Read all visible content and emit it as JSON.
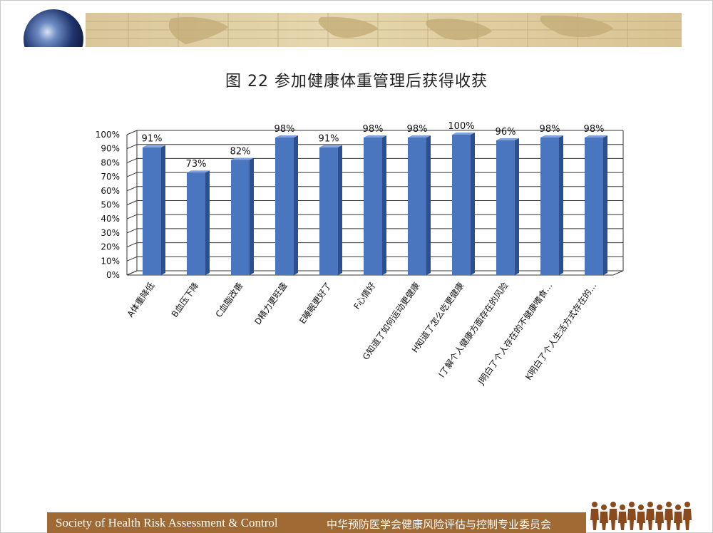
{
  "page": {
    "title": "图 22  参加健康体重管理后获得收获"
  },
  "chart_data": {
    "type": "bar",
    "title": "图 22  参加健康体重管理后获得收获",
    "xlabel": "",
    "ylabel": "",
    "ylim": [
      0,
      100
    ],
    "yticks": [
      "0%",
      "10%",
      "20%",
      "30%",
      "40%",
      "50%",
      "60%",
      "70%",
      "80%",
      "90%",
      "100%"
    ],
    "grid": true,
    "categories": [
      "A体重降低",
      "B血压下降",
      "C血脂改善",
      "D精力更旺盛",
      "E睡眠更好了",
      "F心情好",
      "G知道了如何运动更健康",
      "H知道了怎么吃更健康",
      "I了解个人健康方面存在的风险",
      "J明白了个人存在的不健康嗜食…",
      "K明白了个人生活方式存在的…"
    ],
    "values": [
      91,
      73,
      82,
      98,
      91,
      98,
      98,
      100,
      96,
      98,
      98
    ],
    "data_labels": [
      "91%",
      "73%",
      "82%",
      "98%",
      "91%",
      "98%",
      "98%",
      "100%",
      "96%",
      "98%",
      "98%"
    ],
    "colors": {
      "bar": "#4a76c0",
      "bar_side": "#2c4f8f",
      "bar_top": "#7fa3dc"
    }
  },
  "footer": {
    "english": "Society of Health Risk Assessment & Control",
    "chinese": "中华预防医学会健康风险评估与控制专业委员会"
  },
  "icons": {
    "logo": "globe-icon",
    "banner": "world-map-icon",
    "people": "people-group-icon"
  }
}
